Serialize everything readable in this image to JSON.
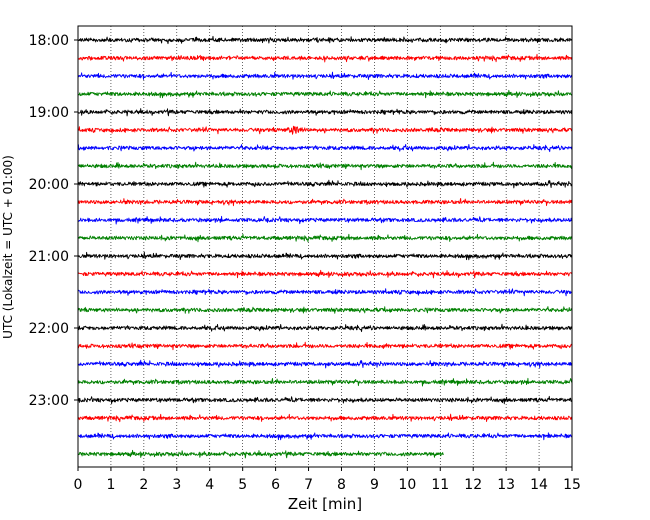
{
  "chart_data": {
    "type": "line",
    "title": "",
    "xlabel": "Zeit  [min]",
    "ylabel": "UTC (Lokalzeit = UTC + 01:00)",
    "xlim": [
      0,
      15
    ],
    "x_ticks": [
      "0",
      "1",
      "2",
      "3",
      "4",
      "5",
      "6",
      "7",
      "8",
      "9",
      "10",
      "11",
      "12",
      "13",
      "14",
      "15"
    ],
    "y_ticks": [
      {
        "time": "18:00",
        "label": "18:00"
      },
      {
        "time": "19:00",
        "label": "19:00"
      },
      {
        "time": "20:00",
        "label": "20:00"
      },
      {
        "time": "21:00",
        "label": "21:00"
      },
      {
        "time": "22:00",
        "label": "22:00"
      },
      {
        "time": "23:00",
        "label": "23:00"
      }
    ],
    "grid": "vertical dotted at each minute",
    "trace_interval_min": 15,
    "colors": [
      "#000000",
      "#ff0000",
      "#0000ff",
      "#008000"
    ],
    "traces": [
      {
        "start": "18:00",
        "end_min": 15
      },
      {
        "start": "18:15",
        "end_min": 15
      },
      {
        "start": "18:30",
        "end_min": 15
      },
      {
        "start": "18:45",
        "end_min": 15
      },
      {
        "start": "19:00",
        "end_min": 15
      },
      {
        "start": "19:15",
        "end_min": 15
      },
      {
        "start": "19:30",
        "end_min": 15
      },
      {
        "start": "19:45",
        "end_min": 15
      },
      {
        "start": "20:00",
        "end_min": 15
      },
      {
        "start": "20:15",
        "end_min": 15
      },
      {
        "start": "20:30",
        "end_min": 15
      },
      {
        "start": "20:45",
        "end_min": 15
      },
      {
        "start": "21:00",
        "end_min": 15
      },
      {
        "start": "21:15",
        "end_min": 15
      },
      {
        "start": "21:30",
        "end_min": 15
      },
      {
        "start": "21:45",
        "end_min": 15
      },
      {
        "start": "22:00",
        "end_min": 15
      },
      {
        "start": "22:15",
        "end_min": 15
      },
      {
        "start": "22:30",
        "end_min": 15
      },
      {
        "start": "22:45",
        "end_min": 15
      },
      {
        "start": "23:00",
        "end_min": 15
      },
      {
        "start": "23:15",
        "end_min": 15
      },
      {
        "start": "23:30",
        "end_min": 15
      },
      {
        "start": "23:45",
        "end_min": 11.1
      }
    ],
    "notable_events": [
      {
        "trace_start": "19:15",
        "minute": 6.6
      }
    ]
  }
}
